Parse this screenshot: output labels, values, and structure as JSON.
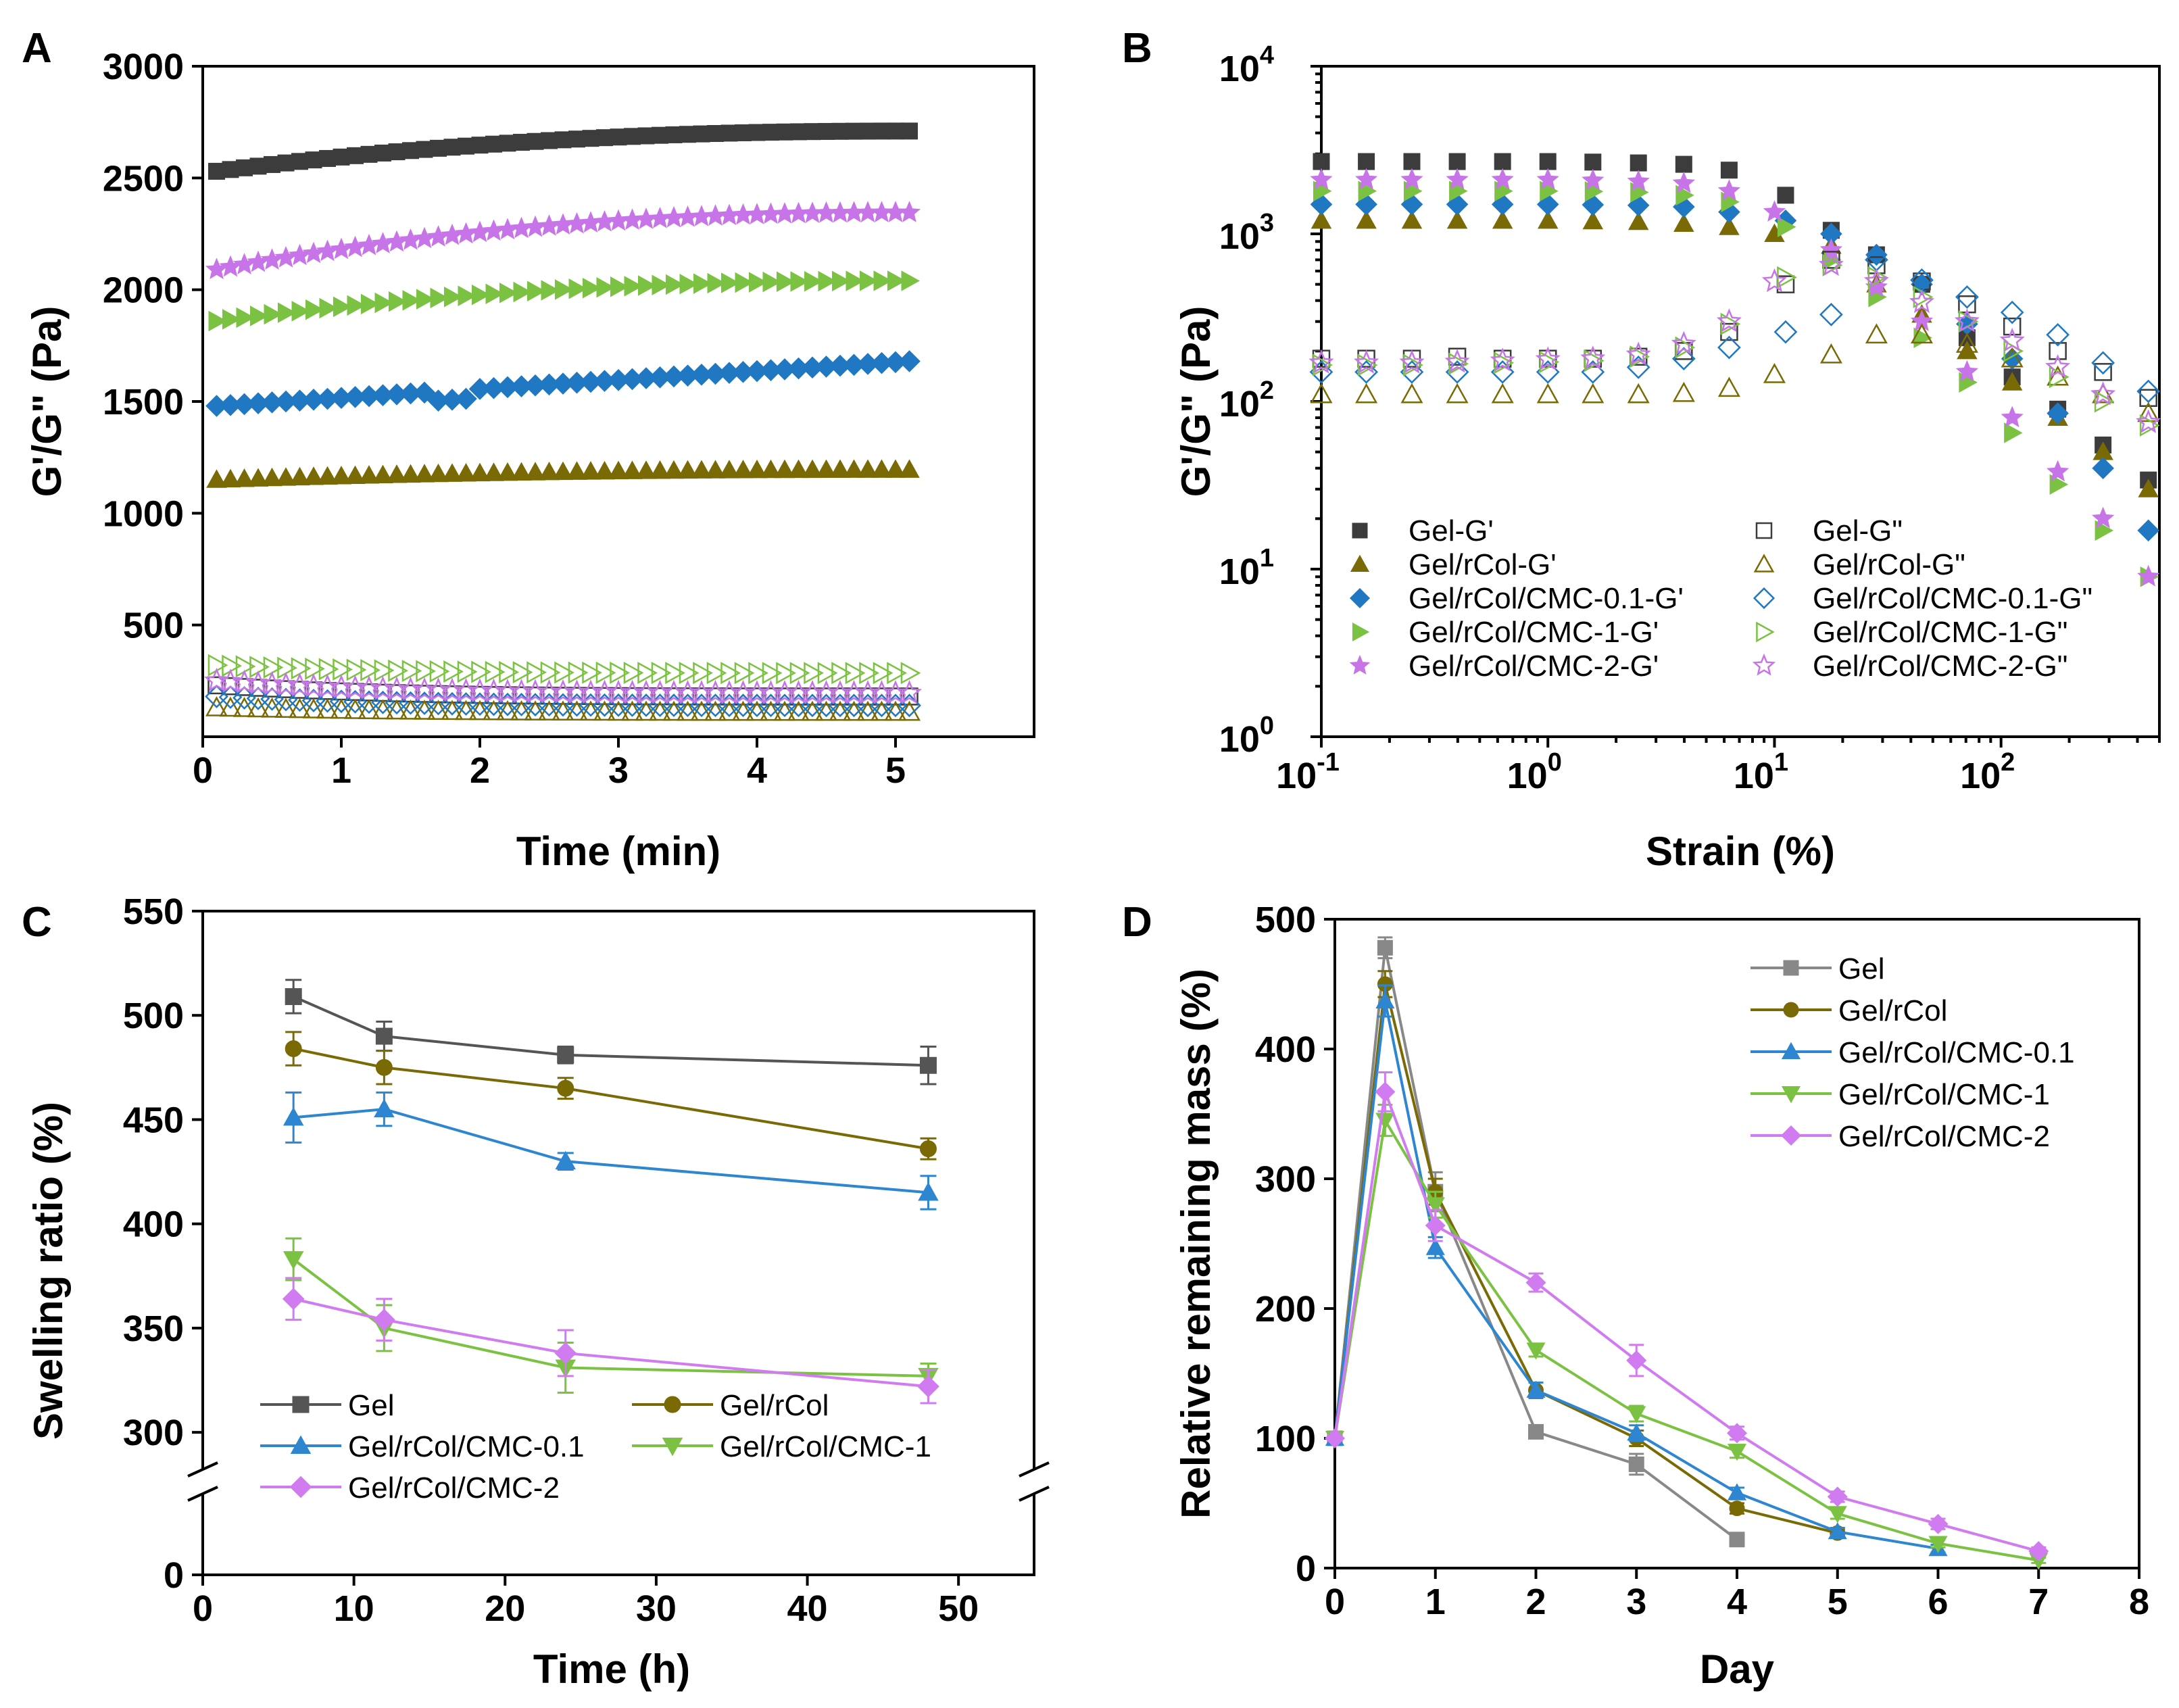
{
  "chart_data": [
    {
      "panel": "A",
      "type": "scatter",
      "xlabel": "Time (min)",
      "ylabel": "G'/G\" (Pa)",
      "xlim": [
        0,
        6
      ],
      "ylim": [
        0,
        3000
      ],
      "xticks": [
        0,
        1,
        2,
        3,
        4,
        5
      ],
      "yticks": [
        500,
        1000,
        1500,
        2000,
        2500,
        3000
      ],
      "x": [
        0.1,
        0.2,
        0.3,
        0.4,
        0.5,
        0.6,
        0.7,
        0.8,
        0.9,
        1.0,
        1.1,
        1.2,
        1.3,
        1.4,
        1.5,
        1.6,
        1.7,
        1.8,
        1.9,
        2.0,
        2.1,
        2.2,
        2.3,
        2.4,
        2.5,
        2.6,
        2.7,
        2.8,
        2.9,
        3.0,
        3.1,
        3.2,
        3.3,
        3.4,
        3.5,
        3.6,
        3.7,
        3.8,
        3.9,
        4.0,
        4.1,
        4.2,
        4.3,
        4.4,
        4.5,
        4.6,
        4.7,
        4.8,
        4.9,
        5.0,
        5.1
      ],
      "series": [
        {
          "name": "Gel-G'",
          "marker": "square",
          "filled": true,
          "color": "#3c3c3c",
          "start": 2530,
          "end": 2710,
          "shape": "concave"
        },
        {
          "name": "Gel/rCol-G'",
          "marker": "triangle-up",
          "filled": true,
          "color": "#7a6a05",
          "start": 1150,
          "end": 1195,
          "shape": "concave"
        },
        {
          "name": "Gel/rCol/CMC-0.1-G'",
          "marker": "diamond",
          "filled": true,
          "color": "#1f78c1",
          "start": 1480,
          "end": 1680,
          "shape": "linear-dip"
        },
        {
          "name": "Gel/rCol/CMC-1-G'",
          "marker": "triangle-right",
          "filled": true,
          "color": "#7cc242",
          "start": 1860,
          "end": 2040,
          "shape": "concave"
        },
        {
          "name": "Gel/rCol/CMC-2-G'",
          "marker": "star",
          "filled": true,
          "color": "#c774e8",
          "start": 2090,
          "end": 2345,
          "shape": "concave"
        },
        {
          "name": "Gel-G\"",
          "marker": "square",
          "filled": false,
          "color": "#3c3c3c",
          "start": 230,
          "end": 180,
          "shape": "convex"
        },
        {
          "name": "Gel/rCol-G\"",
          "marker": "triangle-up",
          "filled": false,
          "color": "#7a6a05",
          "start": 130,
          "end": 110,
          "shape": "convex"
        },
        {
          "name": "Gel/rCol/CMC-0.1-G\"",
          "marker": "diamond",
          "filled": false,
          "color": "#1f78c1",
          "start": 180,
          "end": 140,
          "shape": "convex"
        },
        {
          "name": "Gel/rCol/CMC-1-G\"",
          "marker": "triangle-right",
          "filled": false,
          "color": "#7cc242",
          "start": 320,
          "end": 285,
          "shape": "convex"
        },
        {
          "name": "Gel/rCol/CMC-2-G\"",
          "marker": "star",
          "filled": false,
          "color": "#c774e8",
          "start": 250,
          "end": 195,
          "shape": "convex"
        }
      ]
    },
    {
      "panel": "B",
      "type": "scatter",
      "xlabel": "Strain (%)",
      "ylabel": "G'/G\" (Pa)",
      "xscale": "log",
      "yscale": "log",
      "xlim": [
        0.1,
        500
      ],
      "ylim": [
        1,
        10000
      ],
      "xticks": [
        {
          "base": "10",
          "exp": "-1"
        },
        {
          "base": "10",
          "exp": "0"
        },
        {
          "base": "10",
          "exp": "1"
        },
        {
          "base": "10",
          "exp": "2"
        }
      ],
      "yticks": [
        {
          "base": "10",
          "exp": "0"
        },
        {
          "base": "10",
          "exp": "1"
        },
        {
          "base": "10",
          "exp": "2"
        },
        {
          "base": "10",
          "exp": "3"
        },
        {
          "base": "10",
          "exp": "4"
        }
      ],
      "x": [
        0.1,
        0.158,
        0.251,
        0.398,
        0.631,
        1.0,
        1.58,
        2.51,
        3.98,
        6.31,
        10.0,
        11.2,
        17.8,
        28.2,
        44.7,
        70.8,
        112,
        178,
        282,
        447
      ],
      "series": [
        {
          "name": "Gel-G'",
          "marker": "square",
          "filled": true,
          "color": "#3c3c3c",
          "values": [
            2700,
            2700,
            2700,
            2700,
            2700,
            2700,
            2680,
            2650,
            2600,
            2400,
            null,
            1700,
            1050,
            750,
            500,
            240,
            140,
            90,
            55,
            34
          ]
        },
        {
          "name": "Gel/rCol-G'",
          "marker": "triangle-up",
          "filled": true,
          "color": "#7a6a05",
          "values": [
            1200,
            1200,
            1200,
            1200,
            1200,
            1200,
            1190,
            1180,
            1150,
            1100,
            1000,
            null,
            850,
            500,
            330,
            200,
            130,
            80,
            50,
            30
          ]
        },
        {
          "name": "Gel/rCol/CMC-0.1-G'",
          "marker": "diamond",
          "filled": true,
          "color": "#1f78c1",
          "values": [
            1500,
            1500,
            1500,
            1500,
            1500,
            1500,
            1490,
            1480,
            1450,
            1350,
            null,
            1200,
            1000,
            750,
            500,
            290,
            180,
            85,
            40,
            17
          ]
        },
        {
          "name": "Gel/rCol/CMC-1-G'",
          "marker": "triangle-right",
          "filled": true,
          "color": "#7cc242",
          "values": [
            1800,
            1800,
            1800,
            1800,
            1800,
            1800,
            1790,
            1770,
            1700,
            1550,
            null,
            1100,
            700,
            420,
            240,
            130,
            65,
            32,
            17,
            9
          ]
        },
        {
          "name": "Gel/rCol/CMC-2-G'",
          "marker": "star",
          "filled": true,
          "color": "#c774e8",
          "values": [
            2100,
            2100,
            2100,
            2100,
            2100,
            2100,
            2080,
            2050,
            2000,
            1800,
            1350,
            null,
            800,
            480,
            300,
            150,
            80,
            38,
            20,
            9
          ]
        },
        {
          "name": "Gel-G\"",
          "marker": "square",
          "filled": false,
          "color": "#3c3c3c",
          "values": [
            180,
            180,
            180,
            185,
            180,
            180,
            180,
            185,
            200,
            260,
            null,
            500,
            700,
            650,
            520,
            380,
            280,
            200,
            150,
            105
          ]
        },
        {
          "name": "Gel/rCol-G\"",
          "marker": "triangle-up",
          "filled": false,
          "color": "#7a6a05",
          "values": [
            110,
            110,
            110,
            110,
            110,
            110,
            110,
            110,
            112,
            120,
            145,
            null,
            190,
            250,
            250,
            220,
            180,
            140,
            110,
            85
          ]
        },
        {
          "name": "Gel/rCol/CMC-0.1-G\"",
          "marker": "diamond",
          "filled": false,
          "color": "#1f78c1",
          "values": [
            150,
            150,
            150,
            150,
            150,
            150,
            150,
            160,
            180,
            210,
            null,
            260,
            330,
            700,
            530,
            420,
            340,
            250,
            170,
            115
          ]
        },
        {
          "name": "Gel/rCol/CMC-1-G\"",
          "marker": "triangle-right",
          "filled": false,
          "color": "#7cc242",
          "values": [
            165,
            165,
            165,
            168,
            170,
            172,
            175,
            185,
            210,
            290,
            null,
            550,
            650,
            550,
            420,
            300,
            200,
            140,
            100,
            72
          ]
        },
        {
          "name": "Gel/rCol/CMC-2-G\"",
          "marker": "star",
          "filled": false,
          "color": "#c774e8",
          "values": [
            170,
            170,
            170,
            172,
            175,
            178,
            180,
            190,
            220,
            300,
            520,
            null,
            650,
            520,
            390,
            300,
            230,
            160,
            110,
            75
          ]
        }
      ]
    },
    {
      "panel": "C",
      "type": "line",
      "xlabel": "Time (h)",
      "ylabel": "Swelling ratio (%)",
      "xlim": [
        0,
        55
      ],
      "ylim_upper": [
        290,
        550
      ],
      "axis_break": true,
      "xticks": [
        0,
        10,
        20,
        30,
        40,
        50
      ],
      "yticks": [
        0,
        300,
        350,
        400,
        450,
        500,
        550
      ],
      "x": [
        6,
        12,
        24,
        48
      ],
      "series": [
        {
          "name": "Gel",
          "marker": "square",
          "color": "#555555",
          "values": [
            509,
            490,
            481,
            476
          ],
          "errors": [
            8,
            7,
            4,
            9
          ]
        },
        {
          "name": "Gel/rCol",
          "marker": "circle",
          "color": "#7a6a05",
          "values": [
            484,
            475,
            465,
            436
          ],
          "errors": [
            8,
            8,
            5,
            5
          ]
        },
        {
          "name": "Gel/rCol/CMC-0.1",
          "marker": "triangle-up",
          "color": "#2e86d0",
          "values": [
            451,
            455,
            430,
            415
          ],
          "errors": [
            12,
            8,
            4,
            8
          ]
        },
        {
          "name": "Gel/rCol/CMC-1",
          "marker": "triangle-down",
          "color": "#7cc242",
          "values": [
            383,
            350,
            331,
            327
          ],
          "errors": [
            10,
            11,
            12,
            6
          ]
        },
        {
          "name": "Gel/rCol/CMC-2",
          "marker": "diamond",
          "color": "#d07cf0",
          "values": [
            364,
            354,
            338,
            322
          ],
          "errors": [
            10,
            10,
            11,
            8
          ]
        }
      ]
    },
    {
      "panel": "D",
      "type": "line",
      "xlabel": "Day",
      "ylabel": "Relative remaining mass (%)",
      "xlim": [
        0,
        8
      ],
      "ylim": [
        0,
        500
      ],
      "xticks": [
        0,
        1,
        2,
        3,
        4,
        5,
        6,
        7,
        8
      ],
      "yticks": [
        0,
        100,
        200,
        300,
        400,
        500
      ],
      "series": [
        {
          "name": "Gel",
          "marker": "square",
          "color": "#888888",
          "x": [
            0,
            0.5,
            1,
            2,
            3,
            4
          ],
          "values": [
            100,
            478,
            290,
            105,
            80,
            22
          ],
          "errors": [
            0,
            8,
            15,
            5,
            8,
            3
          ]
        },
        {
          "name": "Gel/rCol",
          "marker": "circle",
          "color": "#7a6a05",
          "x": [
            0,
            0.5,
            1,
            2,
            3,
            4,
            5
          ],
          "values": [
            100,
            450,
            290,
            137,
            100,
            46,
            27
          ],
          "errors": [
            0,
            10,
            10,
            6,
            6,
            4,
            3
          ]
        },
        {
          "name": "Gel/rCol/CMC-0.1",
          "marker": "triangle-up",
          "color": "#2e86d0",
          "x": [
            0,
            0.5,
            1,
            2,
            3,
            4,
            5,
            6
          ],
          "values": [
            100,
            437,
            247,
            137,
            104,
            58,
            28,
            15
          ],
          "errors": [
            0,
            12,
            8,
            6,
            6,
            4,
            3,
            3
          ]
        },
        {
          "name": "Gel/rCol/CMC-1",
          "marker": "triangle-down",
          "color": "#7cc242",
          "x": [
            0,
            0.5,
            1,
            2,
            3,
            4,
            5,
            6,
            7
          ],
          "values": [
            100,
            345,
            280,
            168,
            119,
            90,
            42,
            19,
            6
          ],
          "errors": [
            0,
            12,
            10,
            5,
            6,
            5,
            4,
            3,
            2
          ]
        },
        {
          "name": "Gel/rCol/CMC-2",
          "marker": "diamond",
          "color": "#d07cf0",
          "x": [
            0,
            0.5,
            1,
            2,
            3,
            4,
            5,
            6,
            7
          ],
          "values": [
            100,
            367,
            264,
            220,
            160,
            104,
            55,
            34,
            13
          ],
          "errors": [
            0,
            15,
            12,
            7,
            12,
            5,
            4,
            4,
            3
          ]
        }
      ]
    }
  ]
}
